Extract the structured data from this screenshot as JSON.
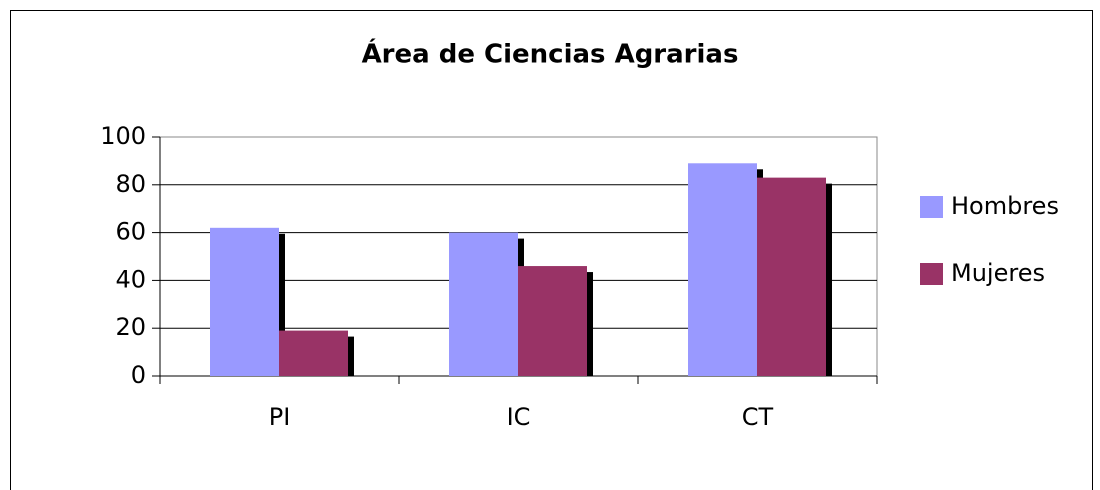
{
  "chart_data": {
    "type": "bar",
    "title": "Área de Ciencias Agrarias",
    "categories": [
      "PI",
      "IC",
      "CT"
    ],
    "series": [
      {
        "name": "Hombres",
        "color": "#9999ff",
        "values": [
          62,
          60,
          89
        ]
      },
      {
        "name": "Mujeres",
        "color": "#993366",
        "values": [
          19,
          46,
          83
        ]
      }
    ],
    "ylim": [
      0,
      100
    ],
    "yticks": [
      0,
      20,
      40,
      60,
      80,
      100
    ],
    "grid": true,
    "legend": "right"
  }
}
